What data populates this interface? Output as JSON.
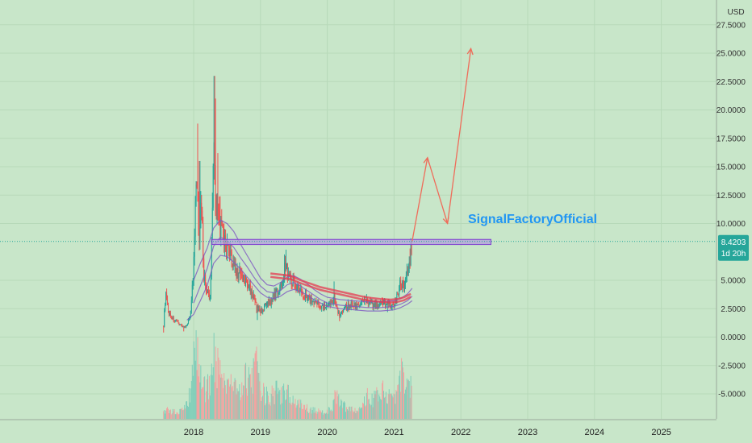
{
  "chart_data": {
    "type": "candlestick",
    "currency": "USD",
    "watermark": "SignalFactoryOfficial",
    "price_label": "8.4203",
    "time_label": "1d 20h",
    "last_price": 8.4203,
    "ylim": [
      -7.3,
      29
    ],
    "xlim": [
      2017.0,
      2025.75
    ],
    "y_ticks": [
      "27.5000",
      "25.0000",
      "22.5000",
      "20.0000",
      "17.5000",
      "15.0000",
      "12.5000",
      "10.0000",
      "5.0000",
      "2.5000",
      "0.0000",
      "-2.5000",
      "-5.0000"
    ],
    "y_tick_values": [
      27.5,
      25,
      22.5,
      20,
      17.5,
      15,
      12.5,
      10,
      5,
      2.5,
      0,
      -2.5,
      -5
    ],
    "x_ticks": [
      "2018",
      "2019",
      "2020",
      "2021",
      "2022",
      "2023",
      "2024",
      "2025"
    ],
    "x_tick_values": [
      2018,
      2019,
      2020,
      2021,
      2022,
      2023,
      2024,
      2025
    ],
    "grid": true,
    "colors": {
      "background": "#c8e6c9",
      "up": "#26a69a",
      "down": "#ef5350",
      "ma_purple": "#7e57c2",
      "ma_red": "#e53950",
      "projection": "#ef6c5a",
      "zone_fill": "#b39ddb",
      "zone_border": "#7e3fcf",
      "price_tag": "#26a69a",
      "watermark": "#2196f3"
    },
    "resistance_zone": {
      "x_start": 2018.27,
      "x_end": 2022.45,
      "y_low": 8.15,
      "y_high": 8.6
    },
    "price_path": [
      [
        2017.55,
        1.0
      ],
      [
        2017.58,
        3.8
      ],
      [
        2017.62,
        2.2
      ],
      [
        2017.7,
        1.5
      ],
      [
        2017.8,
        1.1
      ],
      [
        2017.88,
        0.8
      ],
      [
        2017.95,
        2.0
      ],
      [
        2018.0,
        6.0
      ],
      [
        2018.04,
        14.0
      ],
      [
        2018.08,
        9.0
      ],
      [
        2018.12,
        12.0
      ],
      [
        2018.15,
        5.5
      ],
      [
        2018.2,
        4.0
      ],
      [
        2018.25,
        3.2
      ],
      [
        2018.3,
        18.0
      ],
      [
        2018.33,
        12.0
      ],
      [
        2018.38,
        10.0
      ],
      [
        2018.45,
        8.5
      ],
      [
        2018.55,
        7.0
      ],
      [
        2018.65,
        5.8
      ],
      [
        2018.75,
        5.0
      ],
      [
        2018.85,
        4.2
      ],
      [
        2018.95,
        2.5
      ],
      [
        2019.0,
        2.3
      ],
      [
        2019.1,
        2.8
      ],
      [
        2019.2,
        3.5
      ],
      [
        2019.3,
        4.5
      ],
      [
        2019.38,
        6.5
      ],
      [
        2019.42,
        5.5
      ],
      [
        2019.5,
        4.8
      ],
      [
        2019.6,
        4.0
      ],
      [
        2019.7,
        3.5
      ],
      [
        2019.8,
        3.1
      ],
      [
        2019.9,
        2.8
      ],
      [
        2020.0,
        2.6
      ],
      [
        2020.1,
        3.4
      ],
      [
        2020.18,
        2.0
      ],
      [
        2020.25,
        2.6
      ],
      [
        2020.35,
        2.9
      ],
      [
        2020.45,
        2.7
      ],
      [
        2020.55,
        3.2
      ],
      [
        2020.65,
        2.9
      ],
      [
        2020.75,
        2.8
      ],
      [
        2020.85,
        3.0
      ],
      [
        2020.95,
        2.8
      ],
      [
        2021.0,
        2.9
      ],
      [
        2021.05,
        3.6
      ],
      [
        2021.1,
        4.8
      ],
      [
        2021.15,
        4.2
      ],
      [
        2021.2,
        5.8
      ],
      [
        2021.24,
        6.9
      ],
      [
        2021.27,
        8.42
      ]
    ],
    "highs": [
      [
        2018.06,
        18.8
      ],
      [
        2018.09,
        15.5
      ],
      [
        2018.31,
        23.0
      ],
      [
        2018.33,
        21.0
      ],
      [
        2018.36,
        16.2
      ],
      [
        2018.4,
        12.4
      ],
      [
        2018.45,
        10.0
      ],
      [
        2019.38,
        7.7
      ],
      [
        2020.1,
        4.9
      ],
      [
        2021.24,
        7.8
      ],
      [
        2021.27,
        8.8
      ]
    ],
    "lows": [
      [
        2017.55,
        0.4
      ],
      [
        2017.85,
        0.5
      ],
      [
        2018.95,
        1.5
      ],
      [
        2020.18,
        1.4
      ],
      [
        2020.9,
        2.2
      ]
    ],
    "volume": [
      [
        2017.55,
        0.12
      ],
      [
        2017.65,
        0.1
      ],
      [
        2017.75,
        0.08
      ],
      [
        2017.85,
        0.1
      ],
      [
        2017.95,
        0.3
      ],
      [
        2018.0,
        0.65
      ],
      [
        2018.04,
        0.9
      ],
      [
        2018.08,
        0.7
      ],
      [
        2018.12,
        0.45
      ],
      [
        2018.18,
        0.35
      ],
      [
        2018.25,
        0.45
      ],
      [
        2018.3,
        0.85
      ],
      [
        2018.34,
        0.7
      ],
      [
        2018.4,
        0.55
      ],
      [
        2018.48,
        0.5
      ],
      [
        2018.55,
        0.45
      ],
      [
        2018.63,
        0.4
      ],
      [
        2018.7,
        0.35
      ],
      [
        2018.78,
        0.5
      ],
      [
        2018.86,
        0.42
      ],
      [
        2018.94,
        0.75
      ],
      [
        2019.0,
        0.35
      ],
      [
        2019.08,
        0.28
      ],
      [
        2019.16,
        0.3
      ],
      [
        2019.24,
        0.35
      ],
      [
        2019.32,
        0.3
      ],
      [
        2019.4,
        0.32
      ],
      [
        2019.48,
        0.25
      ],
      [
        2019.56,
        0.18
      ],
      [
        2019.64,
        0.15
      ],
      [
        2019.72,
        0.12
      ],
      [
        2019.8,
        0.1
      ],
      [
        2019.88,
        0.1
      ],
      [
        2019.96,
        0.08
      ],
      [
        2020.05,
        0.12
      ],
      [
        2020.13,
        0.28
      ],
      [
        2020.2,
        0.2
      ],
      [
        2020.28,
        0.15
      ],
      [
        2020.36,
        0.12
      ],
      [
        2020.44,
        0.12
      ],
      [
        2020.52,
        0.2
      ],
      [
        2020.6,
        0.3
      ],
      [
        2020.68,
        0.22
      ],
      [
        2020.76,
        0.3
      ],
      [
        2020.84,
        0.35
      ],
      [
        2020.92,
        0.3
      ],
      [
        2021.0,
        0.28
      ],
      [
        2021.05,
        0.4
      ],
      [
        2021.1,
        0.55
      ],
      [
        2021.14,
        0.5
      ],
      [
        2021.18,
        0.35
      ],
      [
        2021.22,
        0.45
      ],
      [
        2021.26,
        0.38
      ]
    ],
    "ma_purple_series": [
      {
        "name": "",
        "points": [
          [
            2018.0,
            5.0
          ],
          [
            2018.1,
            6.5
          ],
          [
            2018.2,
            7.8
          ],
          [
            2018.3,
            9.6
          ],
          [
            2018.4,
            10.3
          ],
          [
            2018.5,
            10.0
          ],
          [
            2018.6,
            9.3
          ],
          [
            2018.7,
            8.2
          ],
          [
            2018.8,
            7.2
          ],
          [
            2018.9,
            6.2
          ],
          [
            2019.0,
            5.2
          ],
          [
            2019.1,
            4.6
          ],
          [
            2019.2,
            4.5
          ],
          [
            2019.3,
            4.8
          ],
          [
            2019.4,
            5.3
          ],
          [
            2019.5,
            5.4
          ],
          [
            2019.6,
            5.1
          ],
          [
            2019.7,
            4.7
          ],
          [
            2019.8,
            4.2
          ],
          [
            2019.9,
            3.8
          ],
          [
            2020.0,
            3.5
          ],
          [
            2020.2,
            3.3
          ],
          [
            2020.4,
            3.2
          ],
          [
            2020.6,
            3.1
          ],
          [
            2020.8,
            3.1
          ],
          [
            2021.0,
            3.2
          ],
          [
            2021.1,
            3.4
          ],
          [
            2021.2,
            3.8
          ],
          [
            2021.27,
            4.3
          ]
        ]
      },
      {
        "name": "",
        "points": [
          [
            2018.0,
            3.0
          ],
          [
            2018.1,
            4.5
          ],
          [
            2018.2,
            6.0
          ],
          [
            2018.3,
            8.0
          ],
          [
            2018.4,
            8.8
          ],
          [
            2018.5,
            8.5
          ],
          [
            2018.6,
            7.9
          ],
          [
            2018.7,
            7.0
          ],
          [
            2018.8,
            6.2
          ],
          [
            2018.9,
            5.3
          ],
          [
            2019.0,
            4.5
          ],
          [
            2019.1,
            4.0
          ],
          [
            2019.2,
            3.9
          ],
          [
            2019.3,
            4.1
          ],
          [
            2019.4,
            4.6
          ],
          [
            2019.5,
            4.8
          ],
          [
            2019.6,
            4.5
          ],
          [
            2019.7,
            4.1
          ],
          [
            2019.8,
            3.7
          ],
          [
            2019.9,
            3.3
          ],
          [
            2020.0,
            3.0
          ],
          [
            2020.2,
            2.8
          ],
          [
            2020.4,
            2.7
          ],
          [
            2020.6,
            2.6
          ],
          [
            2020.8,
            2.6
          ],
          [
            2021.0,
            2.7
          ],
          [
            2021.1,
            2.9
          ],
          [
            2021.2,
            3.2
          ],
          [
            2021.27,
            3.6
          ]
        ]
      },
      {
        "name": "",
        "points": [
          [
            2017.9,
            1.5
          ],
          [
            2018.0,
            2.0
          ],
          [
            2018.1,
            3.2
          ],
          [
            2018.2,
            4.5
          ],
          [
            2018.3,
            6.5
          ],
          [
            2018.4,
            7.2
          ],
          [
            2018.5,
            7.1
          ],
          [
            2018.6,
            6.6
          ],
          [
            2018.7,
            6.0
          ],
          [
            2018.8,
            5.3
          ],
          [
            2018.9,
            4.6
          ],
          [
            2019.0,
            3.9
          ],
          [
            2019.1,
            3.5
          ],
          [
            2019.2,
            3.4
          ],
          [
            2019.3,
            3.6
          ],
          [
            2019.4,
            4.0
          ],
          [
            2019.5,
            4.2
          ],
          [
            2019.6,
            4.0
          ],
          [
            2019.7,
            3.7
          ],
          [
            2019.8,
            3.3
          ],
          [
            2019.9,
            3.0
          ],
          [
            2020.0,
            2.7
          ],
          [
            2020.2,
            2.5
          ],
          [
            2020.4,
            2.4
          ],
          [
            2020.6,
            2.3
          ],
          [
            2020.8,
            2.3
          ],
          [
            2021.0,
            2.4
          ],
          [
            2021.1,
            2.6
          ],
          [
            2021.2,
            2.9
          ],
          [
            2021.27,
            3.2
          ]
        ]
      }
    ],
    "ma_red_series": [
      {
        "name": "",
        "points": [
          [
            2019.15,
            5.6
          ],
          [
            2019.3,
            5.5
          ],
          [
            2019.45,
            5.4
          ],
          [
            2019.6,
            5.0
          ],
          [
            2019.75,
            4.7
          ],
          [
            2019.9,
            4.4
          ],
          [
            2020.05,
            4.2
          ],
          [
            2020.2,
            4.0
          ],
          [
            2020.35,
            3.8
          ],
          [
            2020.5,
            3.6
          ],
          [
            2020.65,
            3.45
          ],
          [
            2020.8,
            3.35
          ],
          [
            2020.95,
            3.3
          ],
          [
            2021.05,
            3.35
          ],
          [
            2021.15,
            3.5
          ],
          [
            2021.25,
            3.8
          ]
        ]
      },
      {
        "name": "",
        "points": [
          [
            2019.15,
            5.3
          ],
          [
            2019.3,
            5.2
          ],
          [
            2019.45,
            5.1
          ],
          [
            2019.6,
            4.75
          ],
          [
            2019.75,
            4.45
          ],
          [
            2019.9,
            4.15
          ],
          [
            2020.05,
            3.95
          ],
          [
            2020.2,
            3.75
          ],
          [
            2020.35,
            3.55
          ],
          [
            2020.5,
            3.35
          ],
          [
            2020.65,
            3.2
          ],
          [
            2020.8,
            3.1
          ],
          [
            2020.95,
            3.05
          ],
          [
            2021.05,
            3.1
          ],
          [
            2021.15,
            3.25
          ],
          [
            2021.25,
            3.55
          ]
        ]
      }
    ],
    "projection_path": [
      [
        2021.27,
        8.42
      ],
      [
        2021.5,
        15.8
      ],
      [
        2021.8,
        10.0
      ],
      [
        2022.15,
        25.4
      ]
    ]
  }
}
